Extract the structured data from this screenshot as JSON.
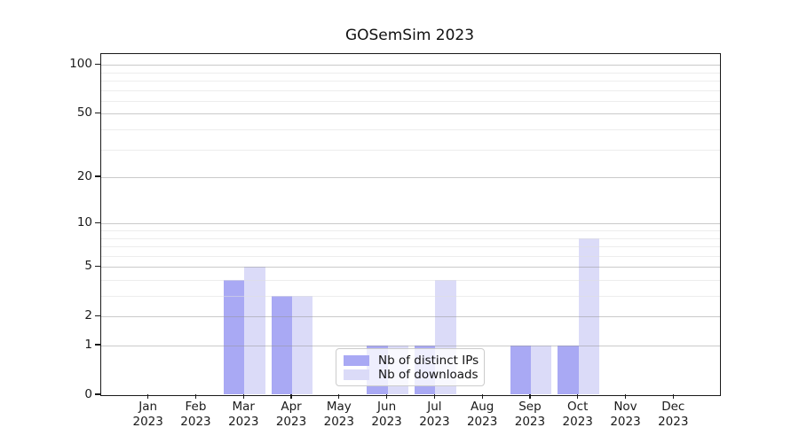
{
  "chart_data": {
    "type": "bar",
    "title": "GOSemSim 2023",
    "categories": [
      "Jan",
      "Feb",
      "Mar",
      "Apr",
      "May",
      "Jun",
      "Jul",
      "Aug",
      "Sep",
      "Oct",
      "Nov",
      "Dec"
    ],
    "x_axis": {
      "year_label": "2023"
    },
    "y_axis": {
      "ticks": [
        0,
        1,
        2,
        5,
        10,
        20,
        50,
        100
      ],
      "scale": "log1p",
      "ylim": [
        0,
        117
      ]
    },
    "series": [
      {
        "name": "Nb of distinct IPs",
        "color": "#a9a9f4",
        "values": [
          0,
          0,
          4,
          3,
          0,
          1,
          1,
          0,
          1,
          1,
          0,
          0
        ]
      },
      {
        "name": "Nb of downloads",
        "color": "#dbdbf8",
        "values": [
          0,
          0,
          5,
          3,
          0,
          1,
          4,
          0,
          1,
          8,
          0,
          0
        ]
      }
    ],
    "legend": {
      "position": "lower-center",
      "frame": true
    },
    "grid": "on"
  }
}
